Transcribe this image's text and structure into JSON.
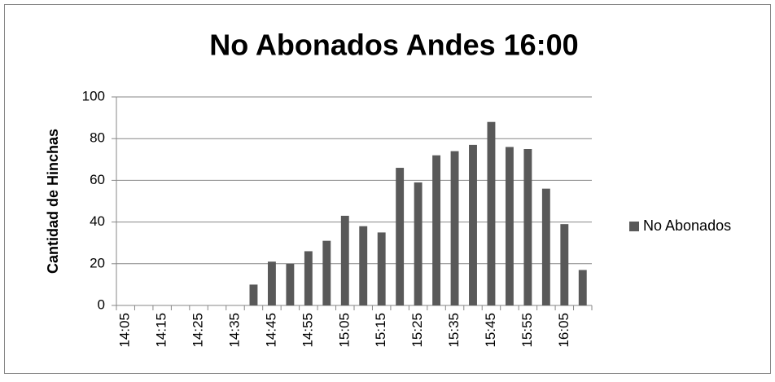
{
  "chart_data": {
    "type": "bar",
    "title": "No Abonados Andes 16:00",
    "y_label": "Cantidad de Hinchas",
    "categories": [
      "14:05",
      null,
      "14:15",
      null,
      "14:25",
      null,
      "14:35",
      null,
      "14:45",
      null,
      "14:55",
      null,
      "15:05",
      null,
      "15:15",
      null,
      "15:25",
      null,
      "15:35",
      null,
      "15:45",
      null,
      "15:55",
      null,
      "16:05",
      null
    ],
    "series": [
      {
        "name": "No Abonados",
        "color": "#595959",
        "values": [
          0,
          0,
          0,
          0,
          0,
          0,
          0,
          10,
          21,
          20,
          26,
          31,
          43,
          38,
          35,
          66,
          59,
          72,
          74,
          77,
          88,
          76,
          75,
          56,
          39,
          17
        ]
      }
    ],
    "ylim": [
      0,
      100
    ],
    "yticks": [
      0,
      20,
      40,
      60,
      80,
      100
    ],
    "grid": true,
    "legend": "right"
  }
}
